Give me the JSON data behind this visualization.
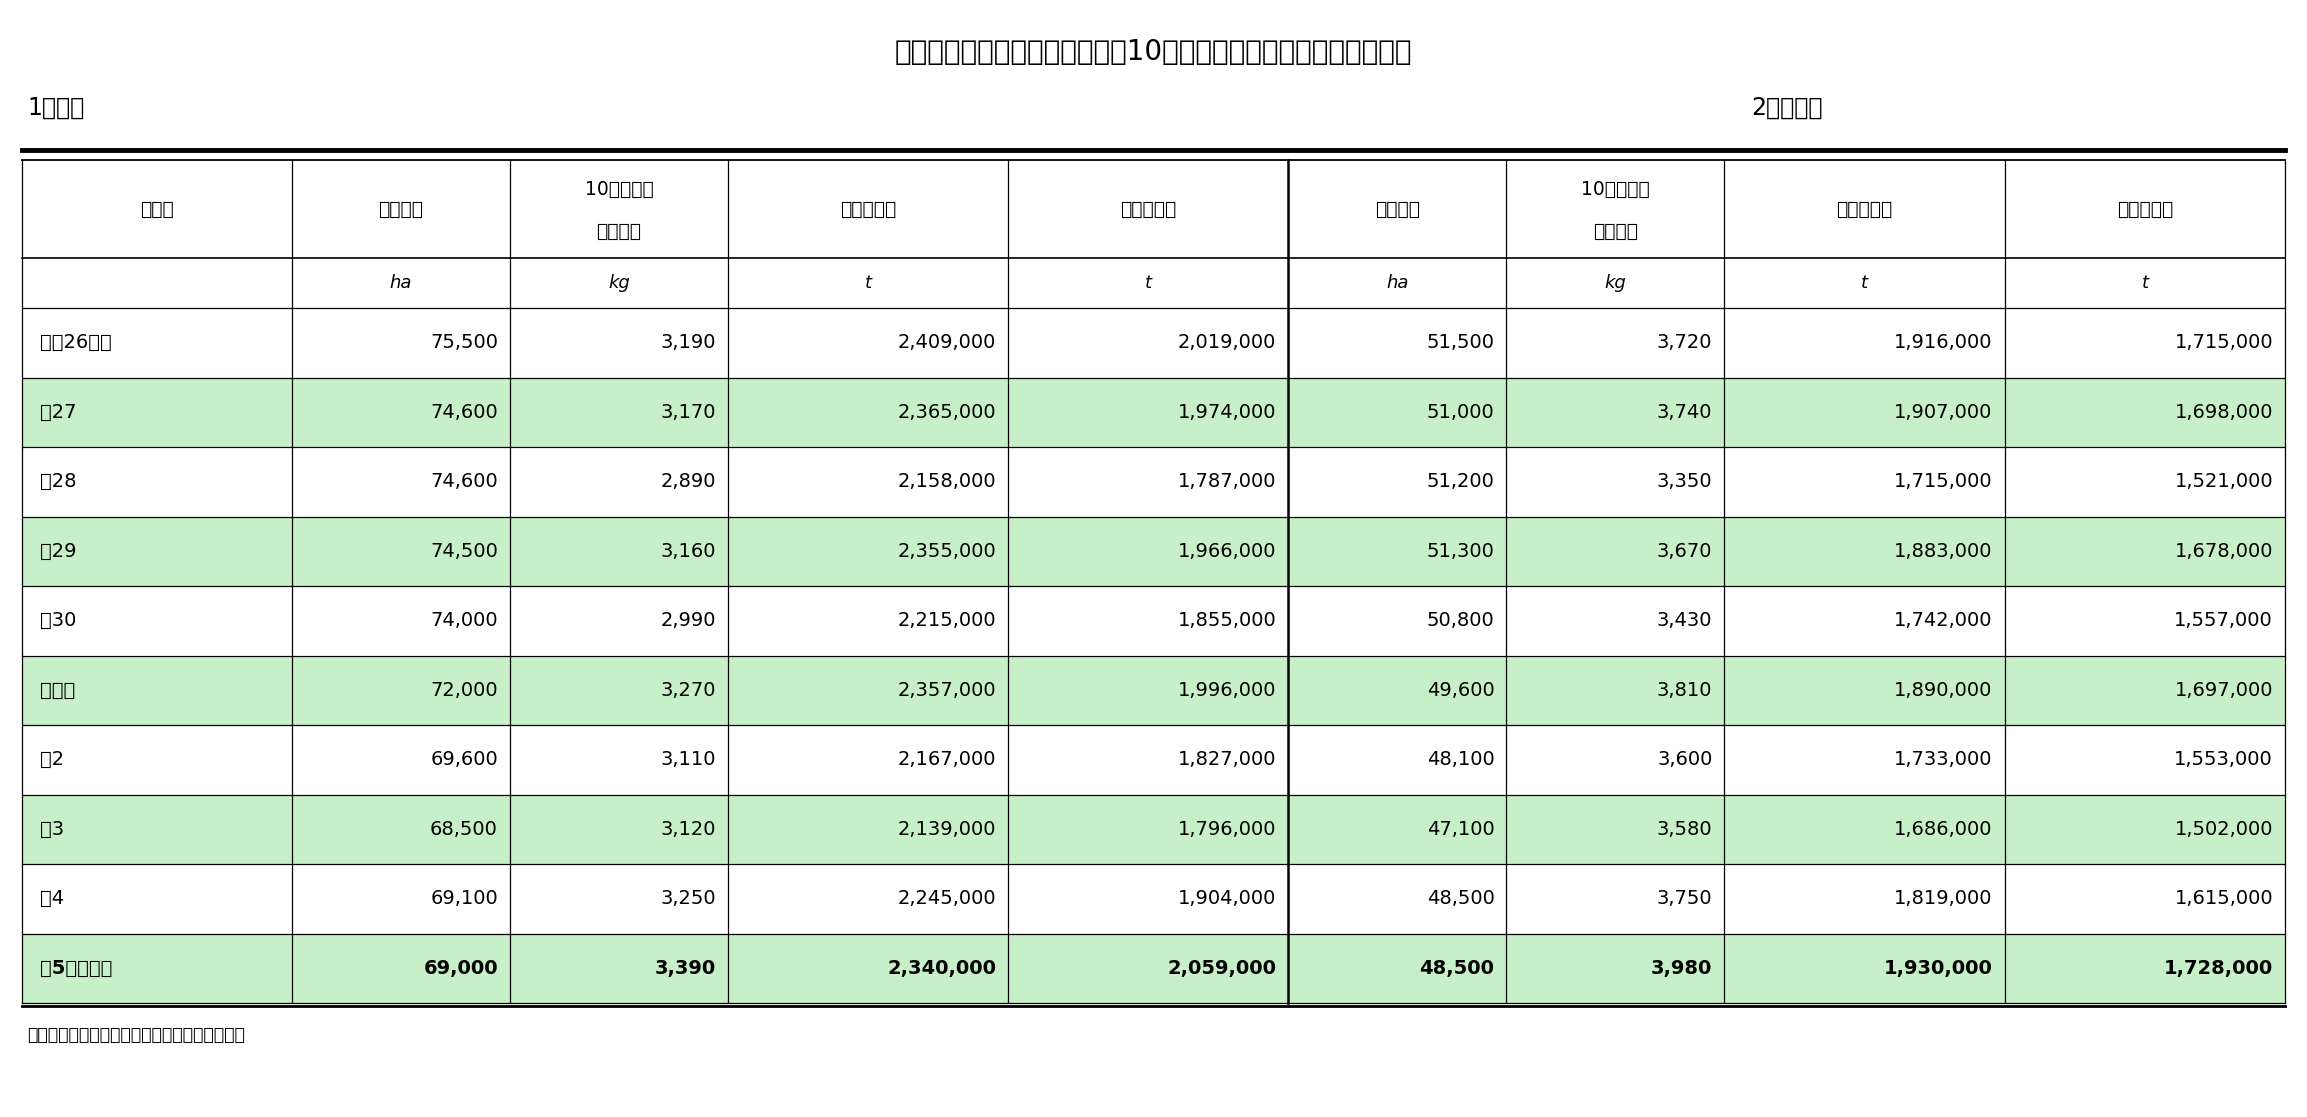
{
  "title": "春植えばれいしょの作付面積、10ａ当たり収量、収穫量及び出荷量",
  "section1": "1　全国",
  "section2": "2　北海道",
  "col_header_line1": [
    "年　産",
    "作付面積",
    "10ａ当たり",
    "収　穫　量",
    "出　荷　量",
    "作付面積",
    "10ａ当たり",
    "収　穫　量",
    "出　荷　量"
  ],
  "col_header_line2": [
    "",
    "",
    "収　　量",
    "",
    "",
    "",
    "収　　量",
    "",
    ""
  ],
  "units": [
    "",
    "ha",
    "kg",
    "t",
    "t",
    "ha",
    "kg",
    "t",
    "t"
  ],
  "rows": [
    {
      "label": "平成26年産",
      "v": [
        "75,500",
        "3,190",
        "2,409,000",
        "2,019,000",
        "51,500",
        "3,720",
        "1,916,000",
        "1,715,000"
      ],
      "hl": false,
      "bold": false
    },
    {
      "label": "　27",
      "v": [
        "74,600",
        "3,170",
        "2,365,000",
        "1,974,000",
        "51,000",
        "3,740",
        "1,907,000",
        "1,698,000"
      ],
      "hl": true,
      "bold": false
    },
    {
      "label": "　28",
      "v": [
        "74,600",
        "2,890",
        "2,158,000",
        "1,787,000",
        "51,200",
        "3,350",
        "1,715,000",
        "1,521,000"
      ],
      "hl": false,
      "bold": false
    },
    {
      "label": "　29",
      "v": [
        "74,500",
        "3,160",
        "2,355,000",
        "1,966,000",
        "51,300",
        "3,670",
        "1,883,000",
        "1,678,000"
      ],
      "hl": true,
      "bold": false
    },
    {
      "label": "　30",
      "v": [
        "74,000",
        "2,990",
        "2,215,000",
        "1,855,000",
        "50,800",
        "3,430",
        "1,742,000",
        "1,557,000"
      ],
      "hl": false,
      "bold": false
    },
    {
      "label": "令和元",
      "v": [
        "72,000",
        "3,270",
        "2,357,000",
        "1,996,000",
        "49,600",
        "3,810",
        "1,890,000",
        "1,697,000"
      ],
      "hl": true,
      "bold": false
    },
    {
      "label": "　2",
      "v": [
        "69,600",
        "3,110",
        "2,167,000",
        "1,827,000",
        "48,100",
        "3,600",
        "1,733,000",
        "1,553,000"
      ],
      "hl": false,
      "bold": false
    },
    {
      "label": "　3",
      "v": [
        "68,500",
        "3,120",
        "2,139,000",
        "1,796,000",
        "47,100",
        "3,580",
        "1,686,000",
        "1,502,000"
      ],
      "hl": true,
      "bold": false
    },
    {
      "label": "　4",
      "v": [
        "69,100",
        "3,250",
        "2,245,000",
        "1,904,000",
        "48,500",
        "3,750",
        "1,819,000",
        "1,615,000"
      ],
      "hl": false,
      "bold": false
    },
    {
      "label": "　5（概数）",
      "v": [
        "69,000",
        "3,390",
        "2,340,000",
        "2,059,000",
        "48,500",
        "3,980",
        "1,930,000",
        "1,728,000"
      ],
      "hl": true,
      "bold": true
    }
  ],
  "footnote": "資料：農林水産省統計部「野菜生産出荷統計」",
  "highlight_color": "#c8f0c8",
  "bg_color": "#ffffff",
  "col_widths_rel": [
    2.6,
    2.1,
    2.1,
    2.7,
    2.7,
    2.1,
    2.1,
    2.7,
    2.7
  ]
}
